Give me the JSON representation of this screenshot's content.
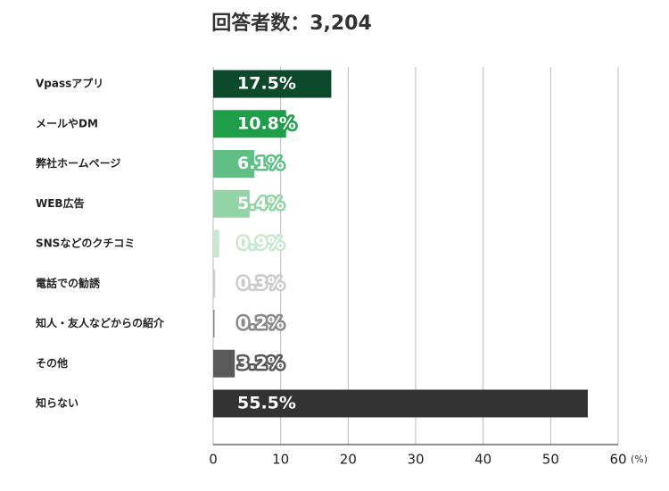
{
  "chart_data": {
    "type": "hbar",
    "title": "回答者数：3,204",
    "categories": [
      "Vpassアプリ",
      "メールやDM",
      "弊社ホームページ",
      "WEB広告",
      "SNSなどのクチコミ",
      "電話での勧誘",
      "知人・友人などからの紹介",
      "その他",
      "知らない"
    ],
    "values": [
      17.5,
      10.8,
      6.1,
      5.4,
      0.9,
      0.3,
      0.2,
      3.2,
      55.5
    ],
    "value_labels": [
      "17.5%",
      "10.8%",
      "6.1%",
      "5.4%",
      "0.9%",
      "0.3%",
      "0.2%",
      "3.2%",
      "55.5%"
    ],
    "colors": [
      "#0d4a2c",
      "#1f9e4a",
      "#5fbf84",
      "#93d4a6",
      "#c9e8d0",
      "#cccccc",
      "#8a8a8a",
      "#5a5a5a",
      "#333333"
    ],
    "xlim": [
      0,
      60
    ],
    "xticks": [
      0,
      10,
      20,
      30,
      40,
      50,
      60
    ],
    "x_unit": "(%)",
    "grid": true
  }
}
